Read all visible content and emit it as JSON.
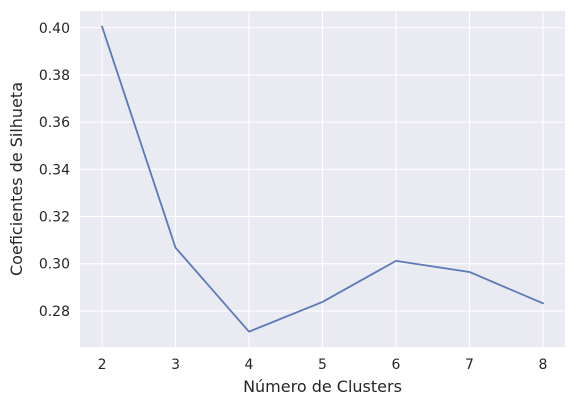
{
  "chart_data": {
    "type": "line",
    "title": "",
    "xlabel": "Número de Clusters",
    "ylabel": "Coeficientes de Silhueta",
    "x": [
      2,
      3,
      4,
      5,
      6,
      7,
      8
    ],
    "series": [
      {
        "values": [
          0.4005,
          0.3068,
          0.2712,
          0.2838,
          0.3012,
          0.2965,
          0.2832
        ]
      }
    ],
    "xticks": [
      2,
      3,
      4,
      5,
      6,
      7,
      8
    ],
    "yticks": [
      0.28,
      0.3,
      0.32,
      0.34,
      0.36,
      0.38,
      0.4
    ],
    "ytick_labels": [
      "0.28",
      "0.30",
      "0.32",
      "0.34",
      "0.36",
      "0.38",
      "0.40"
    ],
    "xlim": [
      1.7,
      8.3
    ],
    "ylim": [
      0.2647,
      0.4071
    ],
    "grid": true,
    "style": "seaborn-darkgrid",
    "colors": {
      "line": "#5a7ab8",
      "plot_background": "#eaeaf2",
      "grid": "#ffffff"
    }
  }
}
